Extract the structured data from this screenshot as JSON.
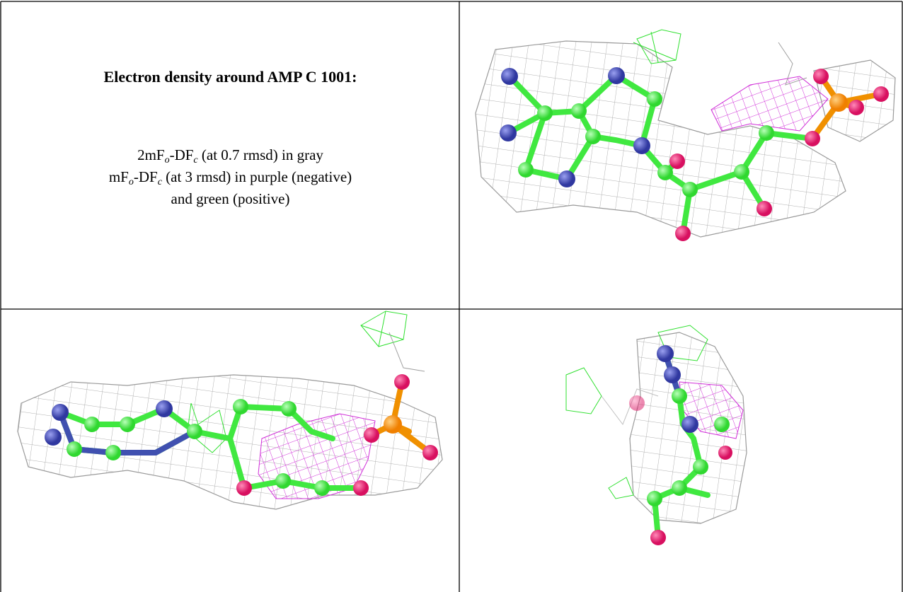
{
  "title": "Electron density around AMP C 1001:",
  "legend_lines": [
    [
      {
        "text": "2mF"
      },
      {
        "sub": "o"
      },
      {
        "text": "-DF"
      },
      {
        "sub": "c"
      },
      {
        "text": " (at 0.7 rmsd) in gray"
      }
    ],
    [
      {
        "text": "mF"
      },
      {
        "sub": "o"
      },
      {
        "text": "-DF"
      },
      {
        "sub": "c"
      },
      {
        "text": " (at 3 rmsd) in purple (negative)"
      }
    ],
    [
      {
        "text": "and green (positive)"
      }
    ]
  ]
}
